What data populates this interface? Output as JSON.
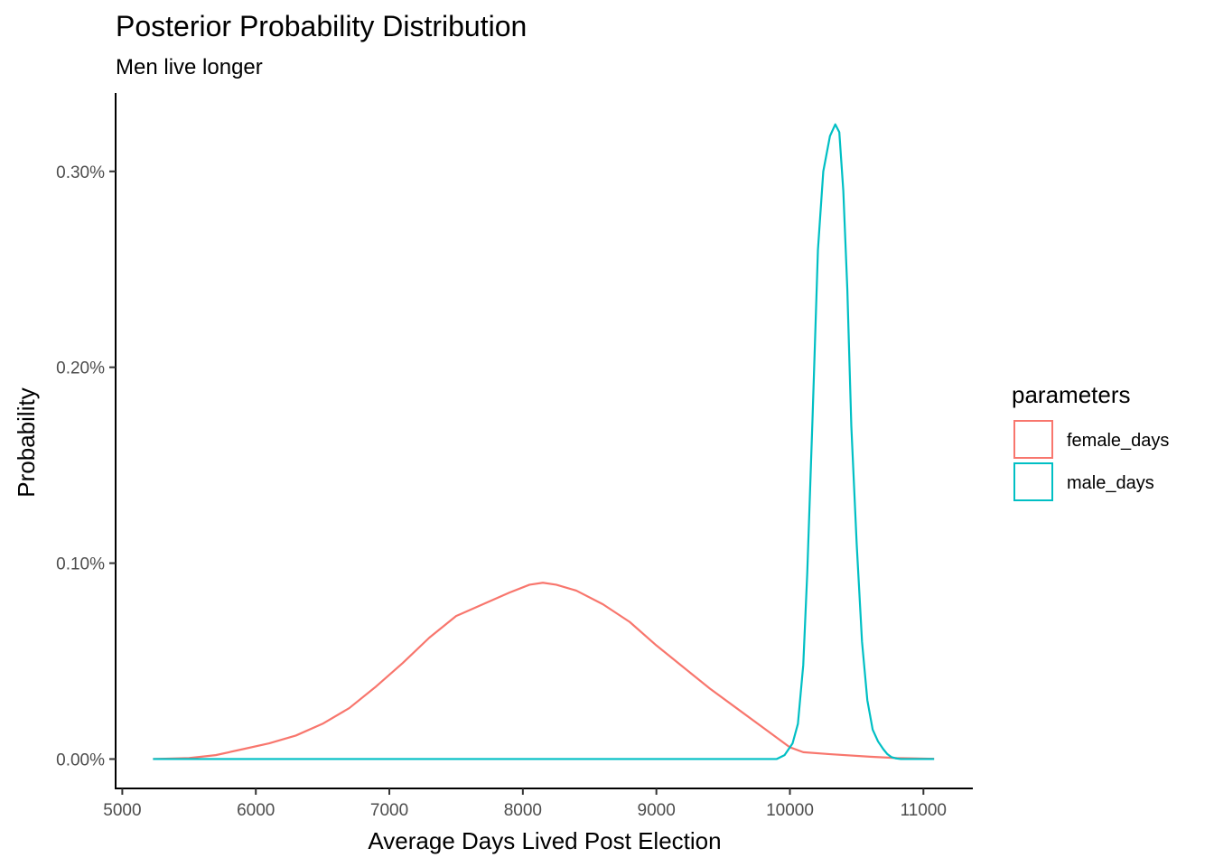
{
  "chart_data": {
    "type": "line",
    "title": "Posterior Probability Distribution",
    "subtitle": "Men live longer",
    "xlabel": "Average Days Lived Post Election",
    "ylabel": "Probability",
    "xlim": [
      4950,
      11370
    ],
    "ylim": [
      -0.00015,
      0.0034
    ],
    "x_ticks": [
      5000,
      6000,
      7000,
      8000,
      9000,
      10000,
      11000
    ],
    "x_tick_labels": [
      "5000",
      "6000",
      "7000",
      "8000",
      "9000",
      "10000",
      "11000"
    ],
    "y_ticks": [
      0,
      0.001,
      0.002,
      0.003
    ],
    "y_tick_labels": [
      "0.00%",
      "0.10%",
      "0.20%",
      "0.30%"
    ],
    "grid": false,
    "legend": {
      "title": "parameters",
      "position": "right"
    },
    "series": [
      {
        "name": "female_days",
        "color": "#F8766D",
        "x": [
          5230,
          5500,
          5700,
          5900,
          6100,
          6300,
          6500,
          6700,
          6900,
          7100,
          7300,
          7500,
          7700,
          7900,
          8050,
          8150,
          8250,
          8400,
          8600,
          8800,
          9000,
          9200,
          9400,
          9600,
          9800,
          10000,
          10100,
          10300,
          10600,
          10800,
          11080
        ],
        "values": [
          0.0,
          5e-06,
          2e-05,
          5e-05,
          8e-05,
          0.00012,
          0.00018,
          0.00026,
          0.00037,
          0.00049,
          0.00062,
          0.00073,
          0.00079,
          0.00085,
          0.00089,
          0.0009,
          0.00089,
          0.00086,
          0.00079,
          0.0007,
          0.00058,
          0.00047,
          0.00036,
          0.00026,
          0.00016,
          6e-05,
          3.5e-05,
          2.5e-05,
          1.2e-05,
          5e-06,
          1e-06
        ]
      },
      {
        "name": "male_days",
        "color": "#00BFC4",
        "x": [
          5230,
          9900,
          9960,
          10020,
          10060,
          10100,
          10130,
          10170,
          10210,
          10250,
          10300,
          10340,
          10370,
          10400,
          10430,
          10460,
          10500,
          10540,
          10580,
          10620,
          10660,
          10700,
          10730,
          10760,
          10790,
          10830,
          11080
        ],
        "values": [
          0.0,
          0.0,
          2e-05,
          8e-05,
          0.00018,
          0.00048,
          0.00095,
          0.00175,
          0.0026,
          0.003,
          0.00318,
          0.00324,
          0.0032,
          0.0029,
          0.0024,
          0.0017,
          0.0011,
          0.0006,
          0.0003,
          0.00015,
          9e-05,
          5e-05,
          2.5e-05,
          1e-05,
          4e-06,
          0.0,
          0.0
        ]
      }
    ]
  }
}
